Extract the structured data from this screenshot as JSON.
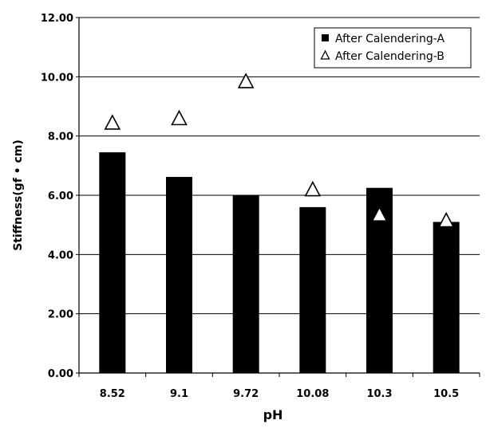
{
  "chart_data": {
    "type": "bar",
    "categories": [
      "8.52",
      "9.1",
      "9.72",
      "10.08",
      "10.3",
      "10.5"
    ],
    "series": [
      {
        "name": "After Calendering-A",
        "kind": "bar",
        "color": "#000000",
        "values": [
          7.45,
          6.62,
          6.0,
          5.6,
          6.25,
          5.1
        ]
      },
      {
        "name": "After Calendering-B",
        "kind": "marker",
        "marker": "triangle-outline",
        "values": [
          8.45,
          8.6,
          9.85,
          6.2,
          5.35,
          5.15
        ]
      }
    ],
    "xlabel": "pH",
    "ylabel": "Stiffness(gf • cm)",
    "ylim": [
      0,
      12
    ],
    "yticks": [
      "0.00",
      "2.00",
      "4.00",
      "6.00",
      "8.00",
      "10.00",
      "12.00"
    ],
    "grid": "horizontal",
    "legend": "top-right"
  }
}
